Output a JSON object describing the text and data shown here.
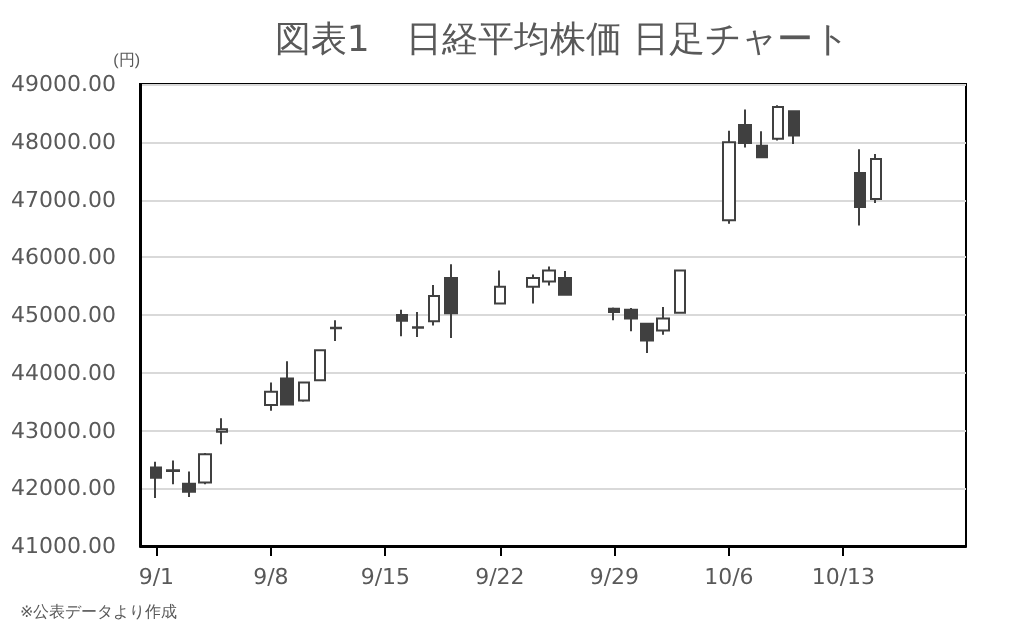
{
  "chart_data": {
    "type": "candlestick",
    "title": "図表1　日経平均株価 日足チャート",
    "ylabel": "(円)",
    "annotations": [
      "※公表データより作成"
    ],
    "x": [
      "--09-01",
      "--09-02",
      "--09-03",
      "--09-04",
      "--09-05",
      "--09-08",
      "--09-09",
      "--09-10",
      "--09-11",
      "--09-12",
      "--09-16",
      "--09-17",
      "--09-18",
      "--09-19",
      "--09-22",
      "--09-24",
      "--09-25",
      "--09-26",
      "--09-29",
      "--09-30",
      "--10-01",
      "--10-02",
      "--10-03",
      "--10-06",
      "--10-07",
      "--10-08",
      "--10-09",
      "--10-10",
      "--10-14",
      "--10-15"
    ],
    "ohlc": [
      [
        42360,
        42460,
        41830,
        42180
      ],
      [
        42300,
        42480,
        42070,
        42310
      ],
      [
        42080,
        42290,
        41850,
        41940
      ],
      [
        42100,
        42610,
        42070,
        42590
      ],
      [
        42980,
        43210,
        42760,
        43020
      ],
      [
        43440,
        43830,
        43340,
        43670
      ],
      [
        43900,
        44200,
        43440,
        43450
      ],
      [
        43520,
        43850,
        43500,
        43830
      ],
      [
        43870,
        44390,
        43860,
        44390
      ],
      [
        44780,
        44910,
        44550,
        44770
      ],
      [
        45000,
        45090,
        44630,
        44900
      ],
      [
        44780,
        45050,
        44620,
        44790
      ],
      [
        44890,
        45520,
        44820,
        45330
      ],
      [
        45640,
        45880,
        44600,
        45030
      ],
      [
        45200,
        45770,
        45190,
        45490
      ],
      [
        45490,
        45700,
        45200,
        45640
      ],
      [
        45580,
        45840,
        45510,
        45770
      ],
      [
        45640,
        45760,
        45340,
        45350
      ],
      [
        45110,
        45130,
        44910,
        45050
      ],
      [
        45090,
        45120,
        44720,
        44940
      ],
      [
        44850,
        44860,
        44340,
        44560
      ],
      [
        44730,
        45140,
        44660,
        44940
      ],
      [
        45040,
        45790,
        45030,
        45770
      ],
      [
        46640,
        48190,
        46580,
        47990
      ],
      [
        48290,
        48560,
        47900,
        47980
      ],
      [
        47930,
        48180,
        47730,
        47730
      ],
      [
        48050,
        48630,
        48020,
        48600
      ],
      [
        48530,
        48530,
        47960,
        48110
      ],
      [
        47460,
        47870,
        46550,
        46870
      ],
      [
        47010,
        47790,
        46940,
        47700
      ]
    ],
    "xlim": [
      "--08-31",
      "--10-20T12:00"
    ],
    "xticks": [
      {
        "value": "--09-01",
        "label": "9/1"
      },
      {
        "value": "--09-08",
        "label": "9/8"
      },
      {
        "value": "--09-15",
        "label": "9/15"
      },
      {
        "value": "--09-22",
        "label": "9/22"
      },
      {
        "value": "--09-29",
        "label": "9/29"
      },
      {
        "value": "--10-06",
        "label": "10/6"
      },
      {
        "value": "--10-13",
        "label": "10/13"
      }
    ],
    "ylim": [
      41000,
      49000
    ],
    "yticks": [
      {
        "value": 41000,
        "label": "41000.00"
      },
      {
        "value": 42000,
        "label": "42000.00"
      },
      {
        "value": 43000,
        "label": "43000.00"
      },
      {
        "value": 44000,
        "label": "44000.00"
      },
      {
        "value": 45000,
        "label": "45000.00"
      },
      {
        "value": 46000,
        "label": "46000.00"
      },
      {
        "value": 47000,
        "label": "47000.00"
      },
      {
        "value": 48000,
        "label": "48000.00"
      },
      {
        "value": 49000,
        "label": "49000.00"
      }
    ],
    "grid": "y"
  }
}
